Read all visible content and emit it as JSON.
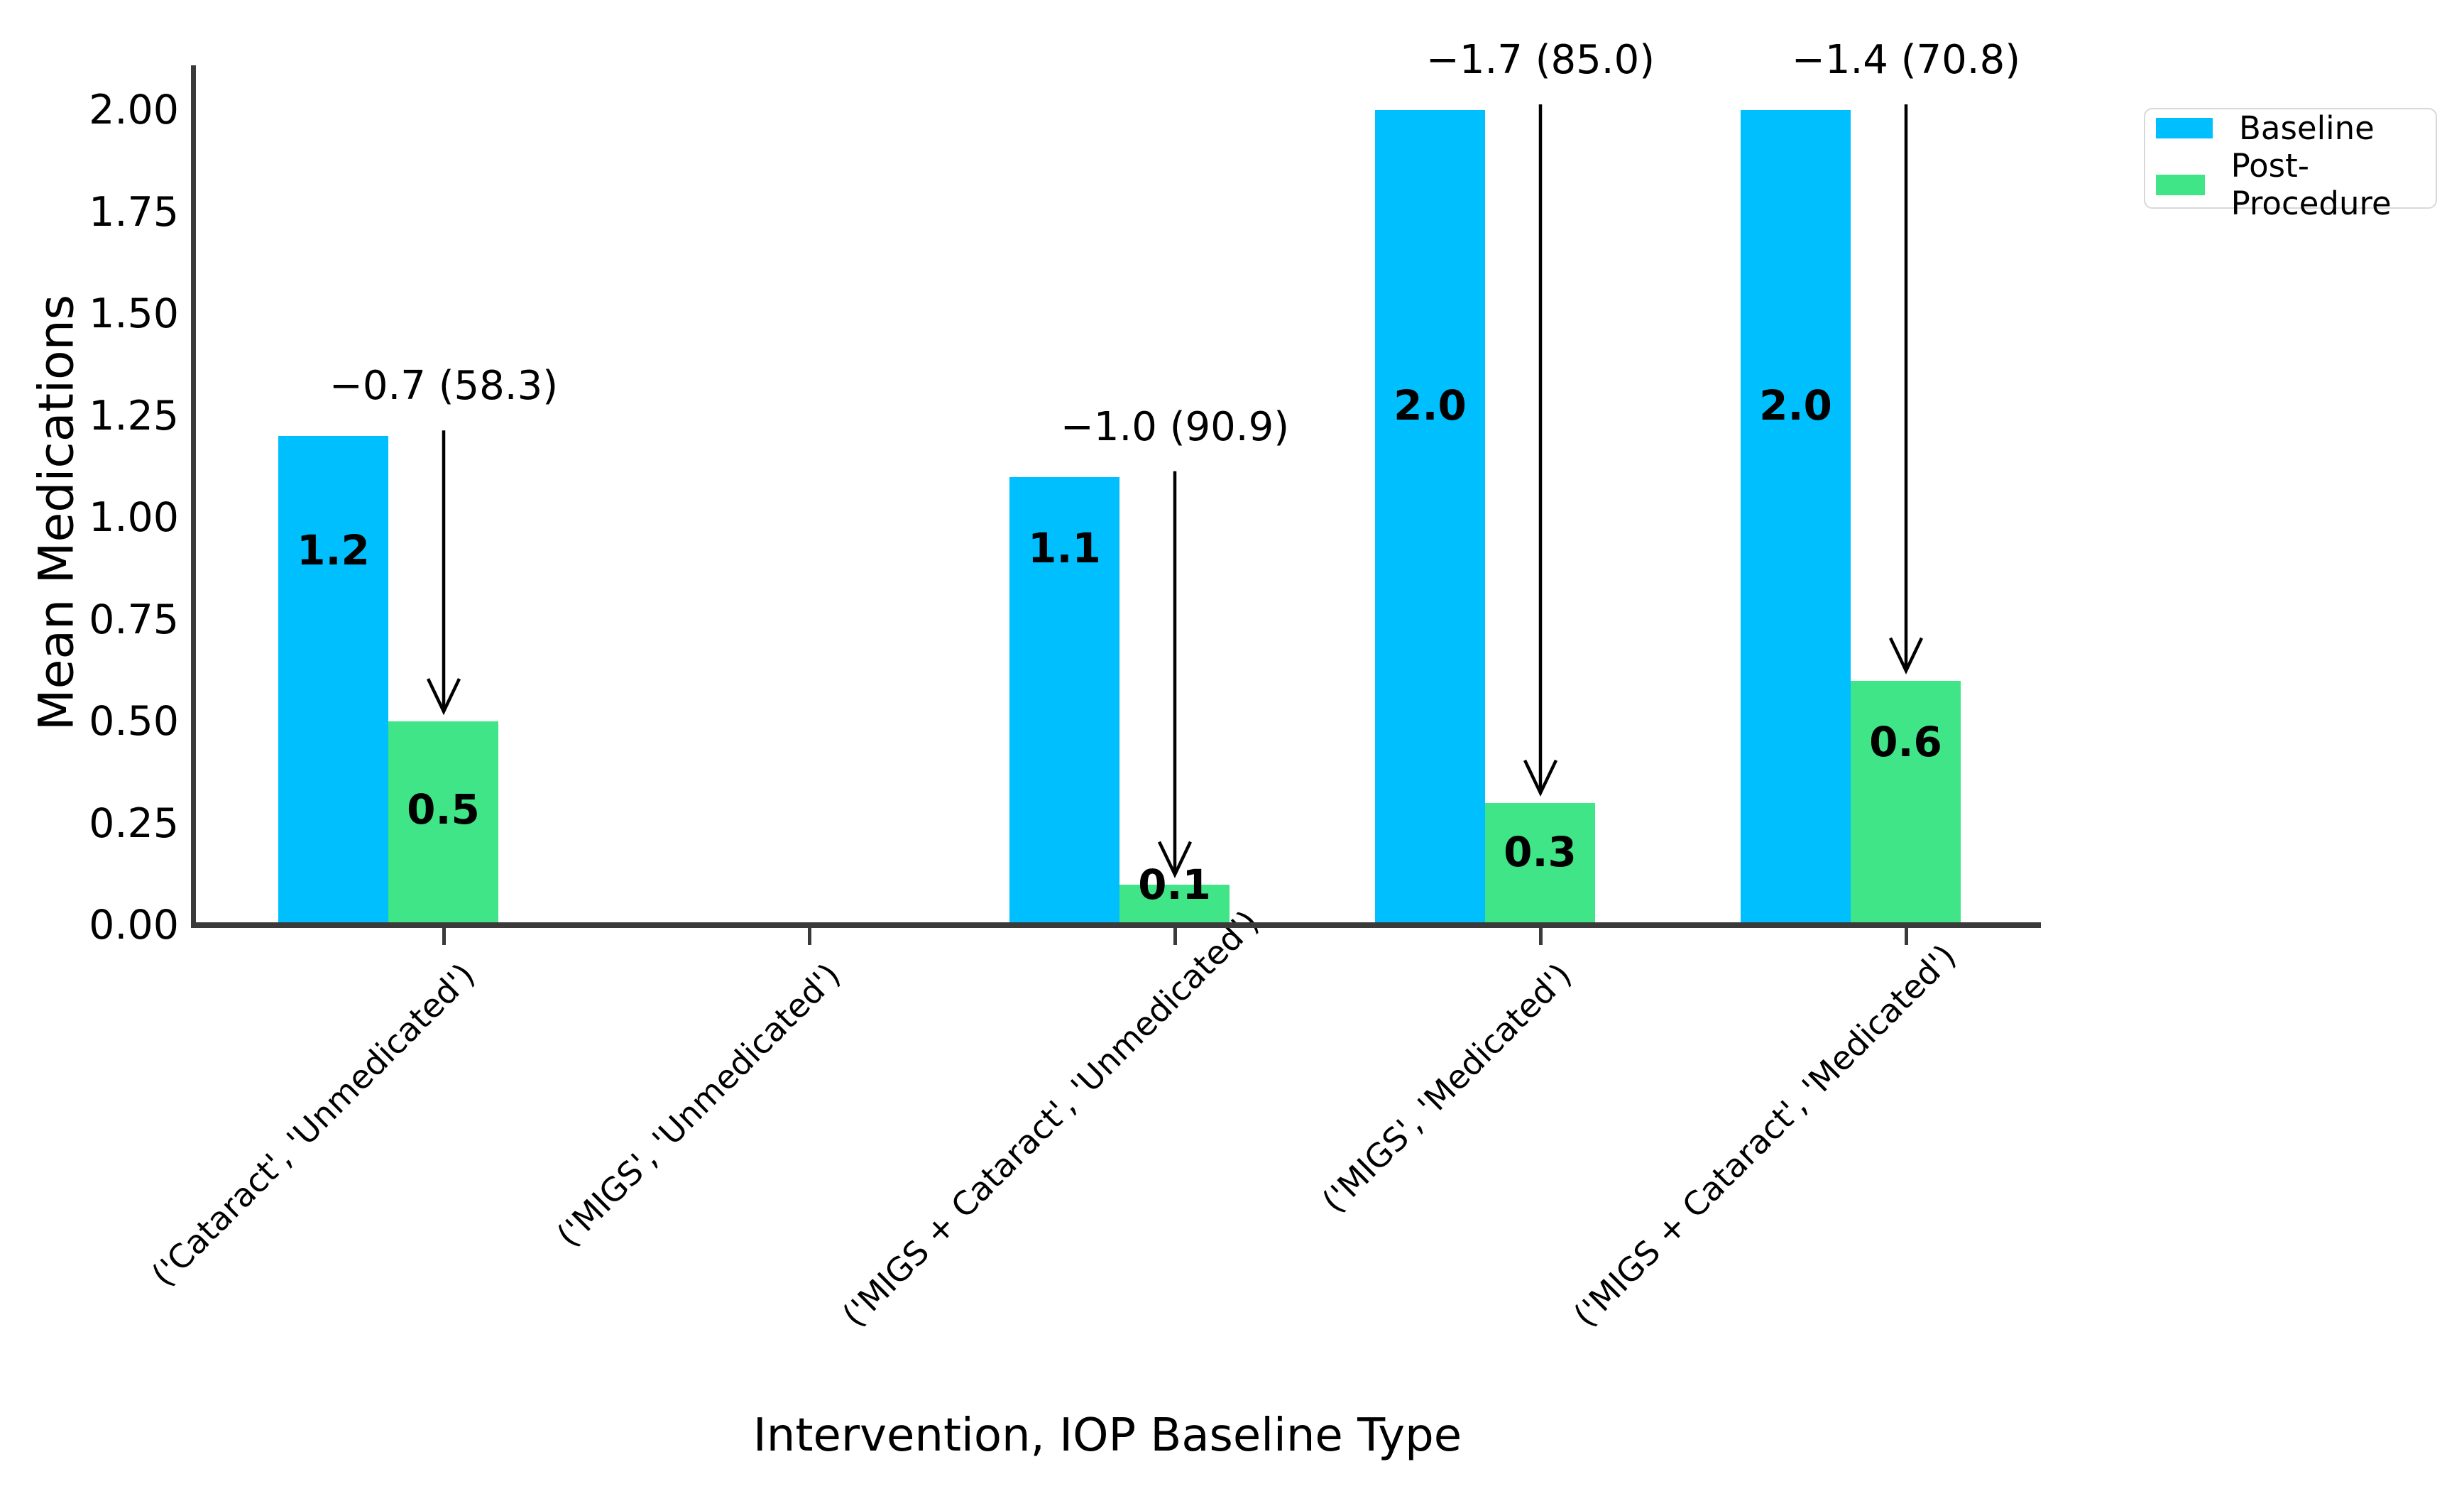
{
  "chart_data": {
    "type": "bar",
    "title": "",
    "xlabel": "Intervention, IOP Baseline Type",
    "ylabel": "Mean Medications",
    "categories": [
      "('Cataract', 'Unmedicated')",
      "('MIGS', 'Unmedicated')",
      "('MIGS + Cataract', 'Unmedicated')",
      "('MIGS', 'Medicated')",
      "('MIGS + Cataract', 'Medicated')"
    ],
    "series": [
      {
        "name": "Baseline",
        "color": "#00bfff",
        "values": [
          1.2,
          0,
          1.1,
          2.0,
          2.0
        ],
        "bar_labels": [
          "1.2",
          null,
          "1.1",
          "2.0",
          "2.0"
        ]
      },
      {
        "name": "Post-Procedure",
        "color": "#3fe586",
        "values": [
          0.5,
          0,
          0.1,
          0.3,
          0.6
        ],
        "bar_labels": [
          "0.5",
          null,
          "0.1",
          "0.3",
          "0.6"
        ]
      }
    ],
    "annotations": [
      {
        "category_index": 0,
        "text": "−0.7 (58.3)"
      },
      {
        "category_index": 2,
        "text": "−1.0 (90.9)"
      },
      {
        "category_index": 3,
        "text": "−1.7 (85.0)"
      },
      {
        "category_index": 4,
        "text": "−1.4 (70.8)"
      }
    ],
    "yticks": [
      "0.00",
      "0.25",
      "0.50",
      "0.75",
      "1.00",
      "1.25",
      "1.50",
      "1.75",
      "2.00"
    ],
    "ytick_values": [
      0,
      0.25,
      0.5,
      0.75,
      1.0,
      1.25,
      1.5,
      1.75,
      2.0
    ],
    "ylim": [
      0,
      2.12
    ],
    "grid": false,
    "legend": {
      "position": "upper right",
      "entries": [
        "Baseline",
        "Post-Procedure"
      ]
    }
  }
}
